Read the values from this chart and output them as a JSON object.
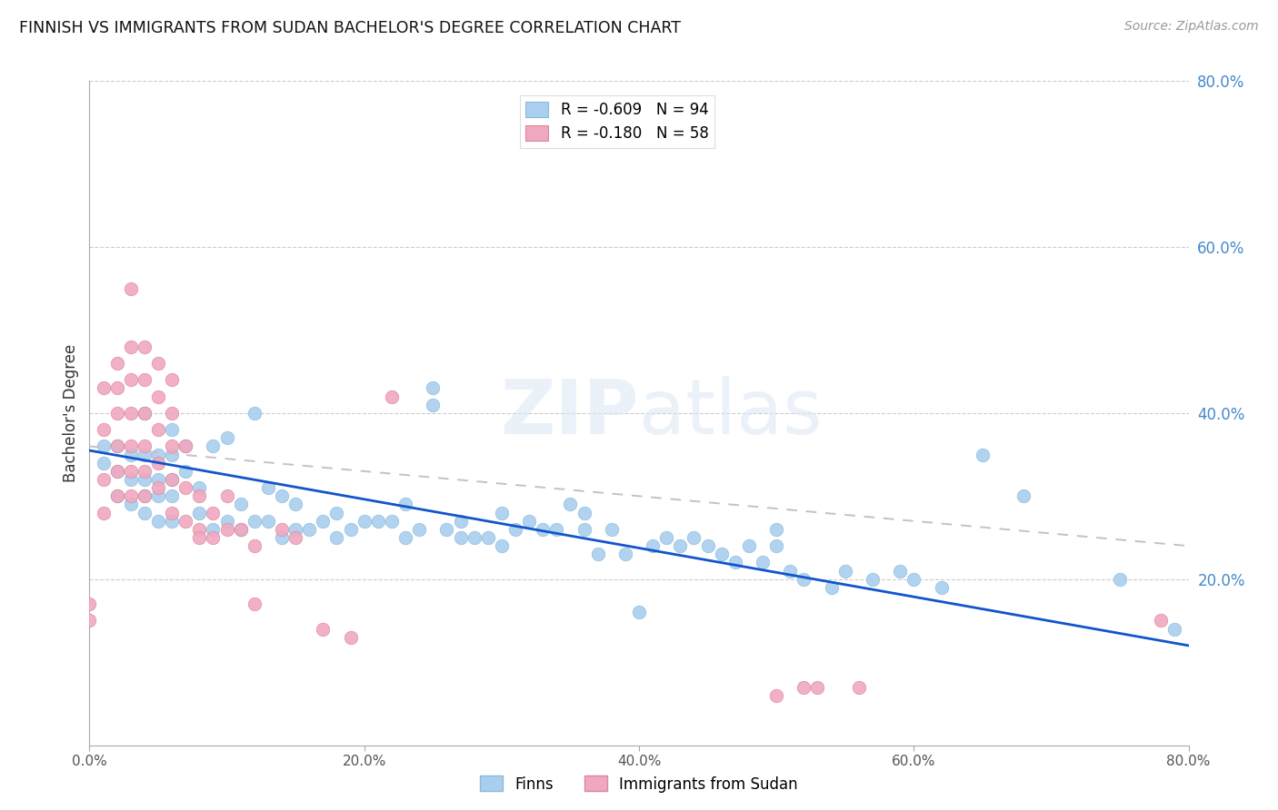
{
  "title": "FINNISH VS IMMIGRANTS FROM SUDAN BACHELOR'S DEGREE CORRELATION CHART",
  "source": "Source: ZipAtlas.com",
  "ylabel": "Bachelor's Degree",
  "watermark": "ZIPatlas",
  "xlim": [
    0.0,
    0.8
  ],
  "ylim": [
    0.0,
    0.8
  ],
  "xticks": [
    0.0,
    0.2,
    0.4,
    0.6,
    0.8
  ],
  "yticks_right": [
    0.2,
    0.4,
    0.6,
    0.8
  ],
  "legend_R1": "-0.609",
  "legend_N1": "94",
  "legend_R2": "-0.180",
  "legend_N2": "58",
  "finns_scatter_color": "#aacfee",
  "finns_edge_color": "#88bbdd",
  "sudan_scatter_color": "#f0a8c0",
  "sudan_edge_color": "#dd8899",
  "trend_finns_color": "#1155cc",
  "trend_sudan_color": "#ccbbcc",
  "finns_trend_x": [
    0.0,
    0.8
  ],
  "finns_trend_y": [
    0.355,
    0.12
  ],
  "sudan_trend_x": [
    0.0,
    0.8
  ],
  "sudan_trend_y": [
    0.36,
    0.24
  ],
  "finns_x": [
    0.01,
    0.01,
    0.02,
    0.02,
    0.02,
    0.03,
    0.03,
    0.03,
    0.04,
    0.04,
    0.04,
    0.04,
    0.04,
    0.05,
    0.05,
    0.05,
    0.05,
    0.06,
    0.06,
    0.06,
    0.06,
    0.06,
    0.07,
    0.07,
    0.08,
    0.08,
    0.09,
    0.09,
    0.1,
    0.1,
    0.11,
    0.11,
    0.12,
    0.12,
    0.13,
    0.13,
    0.14,
    0.14,
    0.15,
    0.15,
    0.16,
    0.17,
    0.18,
    0.18,
    0.19,
    0.2,
    0.21,
    0.22,
    0.23,
    0.23,
    0.24,
    0.25,
    0.25,
    0.26,
    0.27,
    0.27,
    0.28,
    0.29,
    0.3,
    0.3,
    0.31,
    0.32,
    0.33,
    0.34,
    0.35,
    0.36,
    0.36,
    0.37,
    0.38,
    0.39,
    0.4,
    0.41,
    0.42,
    0.43,
    0.44,
    0.45,
    0.46,
    0.47,
    0.48,
    0.49,
    0.5,
    0.5,
    0.51,
    0.52,
    0.54,
    0.55,
    0.57,
    0.59,
    0.6,
    0.62,
    0.65,
    0.68,
    0.75,
    0.79
  ],
  "finns_y": [
    0.34,
    0.36,
    0.3,
    0.33,
    0.36,
    0.29,
    0.32,
    0.35,
    0.28,
    0.3,
    0.32,
    0.35,
    0.4,
    0.27,
    0.3,
    0.32,
    0.35,
    0.27,
    0.3,
    0.32,
    0.35,
    0.38,
    0.33,
    0.36,
    0.28,
    0.31,
    0.26,
    0.36,
    0.27,
    0.37,
    0.26,
    0.29,
    0.27,
    0.4,
    0.27,
    0.31,
    0.25,
    0.3,
    0.26,
    0.29,
    0.26,
    0.27,
    0.25,
    0.28,
    0.26,
    0.27,
    0.27,
    0.27,
    0.25,
    0.29,
    0.26,
    0.41,
    0.43,
    0.26,
    0.25,
    0.27,
    0.25,
    0.25,
    0.24,
    0.28,
    0.26,
    0.27,
    0.26,
    0.26,
    0.29,
    0.26,
    0.28,
    0.23,
    0.26,
    0.23,
    0.16,
    0.24,
    0.25,
    0.24,
    0.25,
    0.24,
    0.23,
    0.22,
    0.24,
    0.22,
    0.24,
    0.26,
    0.21,
    0.2,
    0.19,
    0.21,
    0.2,
    0.21,
    0.2,
    0.19,
    0.35,
    0.3,
    0.2,
    0.14
  ],
  "sudan_x": [
    0.0,
    0.0,
    0.01,
    0.01,
    0.01,
    0.01,
    0.02,
    0.02,
    0.02,
    0.02,
    0.02,
    0.02,
    0.03,
    0.03,
    0.03,
    0.03,
    0.03,
    0.03,
    0.03,
    0.04,
    0.04,
    0.04,
    0.04,
    0.04,
    0.04,
    0.05,
    0.05,
    0.05,
    0.05,
    0.05,
    0.06,
    0.06,
    0.06,
    0.06,
    0.06,
    0.07,
    0.07,
    0.07,
    0.08,
    0.08,
    0.08,
    0.09,
    0.09,
    0.1,
    0.1,
    0.11,
    0.12,
    0.12,
    0.14,
    0.15,
    0.17,
    0.19,
    0.22,
    0.5,
    0.52,
    0.53,
    0.56,
    0.78
  ],
  "sudan_y": [
    0.15,
    0.17,
    0.28,
    0.32,
    0.38,
    0.43,
    0.3,
    0.33,
    0.36,
    0.4,
    0.43,
    0.46,
    0.3,
    0.33,
    0.36,
    0.4,
    0.44,
    0.48,
    0.55,
    0.3,
    0.33,
    0.36,
    0.4,
    0.44,
    0.48,
    0.31,
    0.34,
    0.38,
    0.42,
    0.46,
    0.28,
    0.32,
    0.36,
    0.4,
    0.44,
    0.27,
    0.31,
    0.36,
    0.26,
    0.3,
    0.25,
    0.25,
    0.28,
    0.26,
    0.3,
    0.26,
    0.24,
    0.17,
    0.26,
    0.25,
    0.14,
    0.13,
    0.42,
    0.06,
    0.07,
    0.07,
    0.07,
    0.15
  ]
}
